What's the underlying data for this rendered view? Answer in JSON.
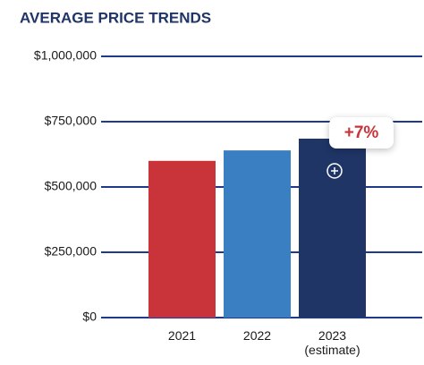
{
  "chart_data": {
    "type": "bar",
    "title": "AVERAGE PRICE TRENDS",
    "categories": [
      "2021",
      "2022",
      "2023 (estimate)"
    ],
    "values": [
      600000,
      640000,
      685000
    ],
    "colors": [
      "#c9343a",
      "#3a7fc1",
      "#1f3566"
    ],
    "ylim": [
      0,
      1000000
    ],
    "yticks": [
      {
        "value": 0,
        "label": "$0"
      },
      {
        "value": 250000,
        "label": "$250,000"
      },
      {
        "value": 500000,
        "label": "$500,000"
      },
      {
        "value": 750000,
        "label": "$750,000"
      },
      {
        "value": 1000000,
        "label": "$1,000,000"
      }
    ],
    "grid": true,
    "annotation": "+7%"
  }
}
